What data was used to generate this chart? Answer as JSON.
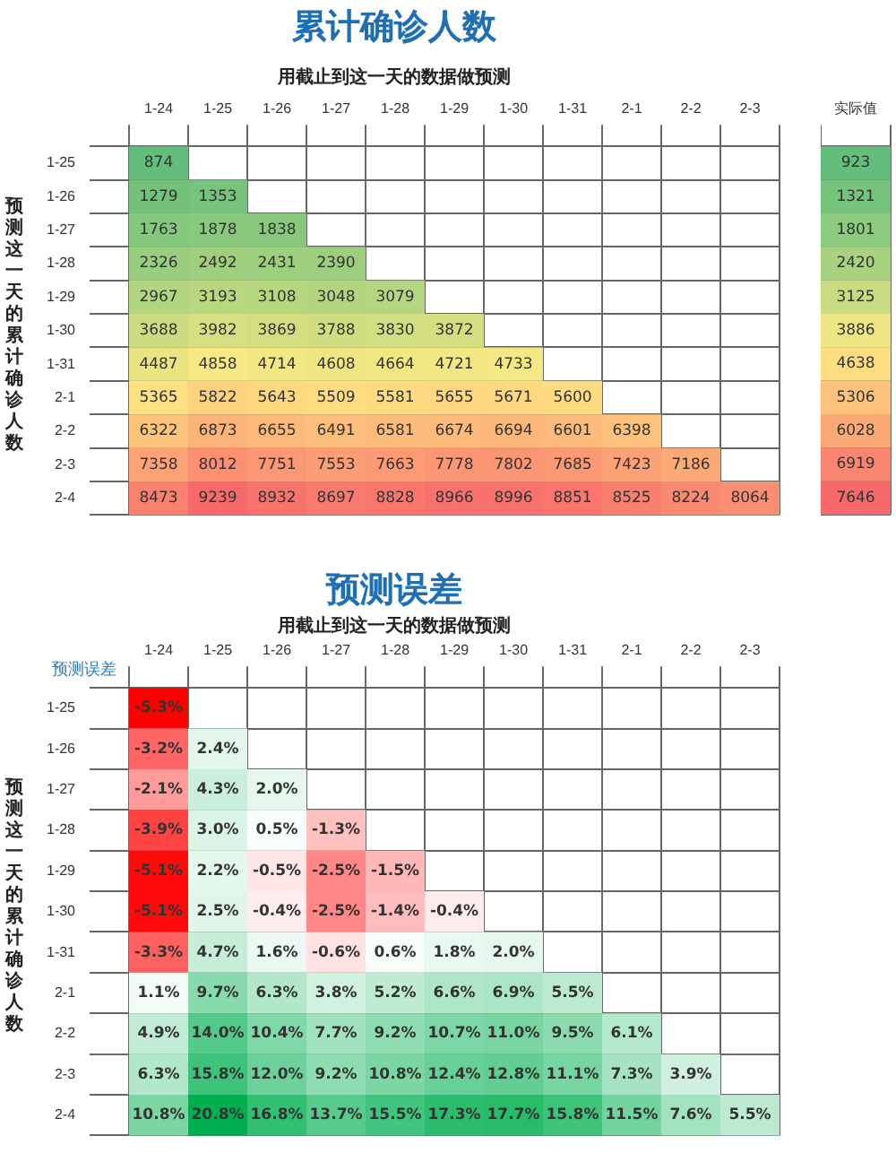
{
  "chart_data": [
    {
      "type": "heatmap",
      "title": "累计确诊人数",
      "subtitle": "用截止到这一天的数据做预测",
      "ylabel": "预测这一天的累计确诊人数",
      "data_labels": true,
      "grid": true,
      "categories": [
        "1-24",
        "1-25",
        "1-26",
        "1-27",
        "1-28",
        "1-29",
        "1-30",
        "1-31",
        "2-1",
        "2-2",
        "2-3"
      ],
      "y_categories": [
        "1-25",
        "1-26",
        "1-27",
        "1-28",
        "1-29",
        "1-30",
        "1-31",
        "2-1",
        "2-2",
        "2-3",
        "2-4"
      ],
      "cells": [
        [
          874,
          null,
          null,
          null,
          null,
          null,
          null,
          null,
          null,
          null,
          null
        ],
        [
          1279,
          1353,
          null,
          null,
          null,
          null,
          null,
          null,
          null,
          null,
          null
        ],
        [
          1763,
          1878,
          1838,
          null,
          null,
          null,
          null,
          null,
          null,
          null,
          null
        ],
        [
          2326,
          2492,
          2431,
          2390,
          null,
          null,
          null,
          null,
          null,
          null,
          null
        ],
        [
          2967,
          3193,
          3108,
          3048,
          3079,
          null,
          null,
          null,
          null,
          null,
          null
        ],
        [
          3688,
          3982,
          3869,
          3788,
          3830,
          3872,
          null,
          null,
          null,
          null,
          null
        ],
        [
          4487,
          4858,
          4714,
          4608,
          4664,
          4721,
          4733,
          null,
          null,
          null,
          null
        ],
        [
          5365,
          5822,
          5643,
          5509,
          5581,
          5655,
          5671,
          5600,
          null,
          null,
          null
        ],
        [
          6322,
          6873,
          6655,
          6491,
          6581,
          6674,
          6694,
          6601,
          6398,
          null,
          null
        ],
        [
          7358,
          8012,
          7751,
          7553,
          7663,
          7778,
          7802,
          7685,
          7423,
          7186,
          null
        ],
        [
          8473,
          9239,
          8932,
          8697,
          8828,
          8966,
          8996,
          8851,
          8525,
          8224,
          8064
        ]
      ]
    },
    {
      "type": "heatmap",
      "categories": [
        "实际值"
      ],
      "y_categories": [
        null,
        null,
        null,
        null,
        null,
        null,
        null,
        null,
        null,
        null,
        null
      ],
      "tick_labels": "x",
      "data_labels": true,
      "grid": true,
      "cells": [
        [
          923
        ],
        [
          1321
        ],
        [
          1801
        ],
        [
          2420
        ],
        [
          3125
        ],
        [
          3886
        ],
        [
          4638
        ],
        [
          5306
        ],
        [
          6028
        ],
        [
          6919
        ],
        [
          7646
        ]
      ]
    },
    {
      "type": "heatmap",
      "title": "预测误差",
      "subtitle": "用截止到这一天的数据做预测",
      "ylabel": "预测这一天的累计确诊人数",
      "annotations": [
        "预测误差"
      ],
      "grid": true,
      "categories": [
        "1-24",
        "1-25",
        "1-26",
        "1-27",
        "1-28",
        "1-29",
        "1-30",
        "1-31",
        "2-1",
        "2-2",
        "2-3"
      ],
      "y_categories": [
        "1-25",
        "1-26",
        "1-27",
        "1-28",
        "1-29",
        "1-30",
        "1-31",
        "2-1",
        "2-2",
        "2-3",
        "2-4"
      ],
      "cells": [
        [
          -5.3,
          null,
          null,
          null,
          null,
          null,
          null,
          null,
          null,
          null,
          null
        ],
        [
          -3.2,
          2.4,
          null,
          null,
          null,
          null,
          null,
          null,
          null,
          null,
          null
        ],
        [
          -2.1,
          4.3,
          2.0,
          null,
          null,
          null,
          null,
          null,
          null,
          null,
          null
        ],
        [
          -3.9,
          3.0,
          0.5,
          -1.3,
          null,
          null,
          null,
          null,
          null,
          null,
          null
        ],
        [
          -5.1,
          2.2,
          -0.5,
          -2.5,
          -1.5,
          null,
          null,
          null,
          null,
          null,
          null
        ],
        [
          -5.1,
          2.5,
          -0.4,
          -2.5,
          -1.4,
          -0.4,
          null,
          null,
          null,
          null,
          null
        ],
        [
          -3.3,
          4.7,
          1.6,
          -0.6,
          0.6,
          1.8,
          2.0,
          null,
          null,
          null,
          null
        ],
        [
          1.1,
          9.7,
          6.3,
          3.8,
          5.2,
          6.6,
          6.9,
          5.5,
          null,
          null,
          null
        ],
        [
          4.9,
          14.0,
          10.4,
          7.7,
          9.2,
          10.7,
          11.0,
          9.5,
          6.1,
          null,
          null
        ],
        [
          6.3,
          15.8,
          12.0,
          9.2,
          10.8,
          12.4,
          12.8,
          11.1,
          7.3,
          3.9,
          null
        ],
        [
          10.8,
          20.8,
          16.8,
          13.7,
          15.5,
          17.3,
          17.7,
          15.8,
          11.5,
          7.6,
          5.5
        ]
      ],
      "cell_labels": [
        [
          "-5.3%",
          null,
          null,
          null,
          null,
          null,
          null,
          null,
          null,
          null,
          null
        ],
        [
          "-3.2%",
          "2.4%",
          null,
          null,
          null,
          null,
          null,
          null,
          null,
          null,
          null
        ],
        [
          "-2.1%",
          "4.3%",
          "2.0%",
          null,
          null,
          null,
          null,
          null,
          null,
          null,
          null
        ],
        [
          "-3.9%",
          "3.0%",
          "0.5%",
          "-1.3%",
          null,
          null,
          null,
          null,
          null,
          null,
          null
        ],
        [
          "-5.1%",
          "2.2%",
          "-0.5%",
          "-2.5%",
          "-1.5%",
          null,
          null,
          null,
          null,
          null,
          null
        ],
        [
          "-5.1%",
          "2.5%",
          "-0.4%",
          "-2.5%",
          "-1.4%",
          "-0.4%",
          null,
          null,
          null,
          null,
          null
        ],
        [
          "-3.3%",
          "4.7%",
          "1.6%",
          "-0.6%",
          "0.6%",
          "1.8%",
          "2.0%",
          null,
          null,
          null,
          null
        ],
        [
          "1.1%",
          "9.7%",
          "6.3%",
          "3.8%",
          "5.2%",
          "6.6%",
          "6.9%",
          "5.5%",
          null,
          null,
          null
        ],
        [
          "4.9%",
          "14.0%",
          "10.4%",
          "7.7%",
          "9.2%",
          "10.7%",
          "11.0%",
          "9.5%",
          "6.1%",
          null,
          null
        ],
        [
          "6.3%",
          "15.8%",
          "12.0%",
          "9.2%",
          "10.8%",
          "12.4%",
          "12.8%",
          "11.1%",
          "7.3%",
          "3.9%",
          null
        ],
        [
          "10.8%",
          "20.8%",
          "16.8%",
          "13.7%",
          "15.5%",
          "17.3%",
          "17.7%",
          "15.8%",
          "11.5%",
          "7.6%",
          "5.5%"
        ]
      ]
    }
  ]
}
